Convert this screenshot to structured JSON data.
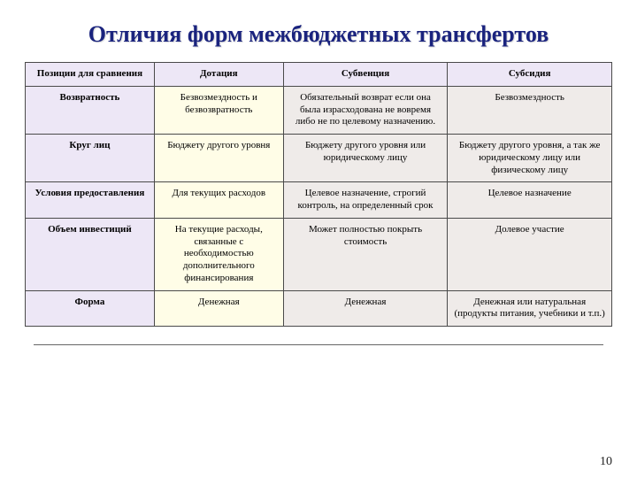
{
  "title": "Отличия форм межбюджетных трансфертов",
  "page_number": "10",
  "colors": {
    "title_color": "#1a237e",
    "header_bg": "#ede7f6",
    "row_label_bg": "#ede7f6",
    "col_dotation_bg": "#fffde7",
    "col_subvention_bg": "#efebe9",
    "col_subsidy_bg": "#efebe9",
    "border_color": "#4a4a4a",
    "page_bg": "#ffffff"
  },
  "typography": {
    "title_fontsize_pt": 20,
    "cell_fontsize_pt": 8.5,
    "font_family": "Times New Roman"
  },
  "table": {
    "type": "table",
    "column_widths_pct": [
      22,
      22,
      28,
      28
    ],
    "columns": [
      "Позиции для сравнения",
      "Дотация",
      "Субвенция",
      "Субсидия"
    ],
    "rows": [
      {
        "label": "Возвратность",
        "cells": [
          "Безвозмездность и безвозвратность",
          "Обязательный возврат если она была израсходована не вовремя либо не по целевому назначению.",
          "Безвозмездность"
        ]
      },
      {
        "label": "Круг лиц",
        "cells": [
          "Бюджету другого уровня",
          "Бюджету другого уровня или юридическому лицу",
          "Бюджету другого уровня, а так же юридическому лицу или физическому лицу"
        ]
      },
      {
        "label": "Условия предоставления",
        "cells": [
          "Для текущих расходов",
          "Целевое назначение, строгий контроль, на определенный срок",
          "Целевое назначение"
        ]
      },
      {
        "label": "Объем инвестиций",
        "cells": [
          "На текущие расходы, связанные с необходимостью дополнительного финансирования",
          "Может полностью покрыть стоимость",
          "Долевое участие"
        ]
      },
      {
        "label": "Форма",
        "cells": [
          "Денежная",
          "Денежная",
          "Денежная или натуральная (продукты питания, учебники и т.п.)"
        ]
      }
    ]
  }
}
